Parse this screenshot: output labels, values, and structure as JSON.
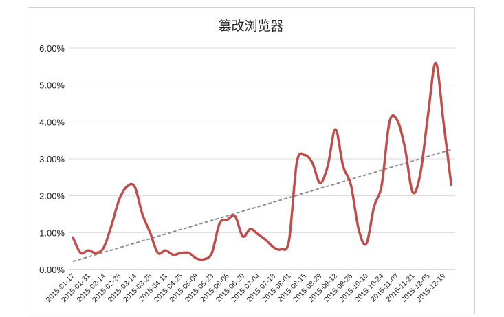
{
  "chart_data": {
    "type": "line",
    "title": "篡改浏览器",
    "categories": [
      "2015-01-17",
      null,
      "2015-01-31",
      null,
      "2015-02-14",
      null,
      "2015-02-28",
      null,
      "2015-03-14",
      null,
      "2015-03-28",
      null,
      "2015-04-11",
      null,
      "2015-04-25",
      null,
      "2015-05-09",
      null,
      "2015-05-23",
      null,
      "2015-06-06",
      null,
      "2015-06-20",
      null,
      "2015-07-04",
      null,
      "2015-07-18",
      null,
      "2015-08-01",
      null,
      "2015-08-15",
      null,
      "2015-08-29",
      null,
      "2015-09-12",
      null,
      "2015-09-26",
      null,
      "2015-10-10",
      null,
      "2015-10-24",
      null,
      "2015-11-07",
      null,
      "2015-11-21",
      null,
      "2015-12-05",
      null,
      "2015-12-19",
      null
    ],
    "values": [
      0.87,
      0.45,
      0.52,
      0.45,
      0.6,
      1.2,
      1.9,
      2.25,
      2.25,
      1.5,
      1.0,
      0.45,
      0.52,
      0.4,
      0.45,
      0.45,
      0.3,
      0.28,
      0.45,
      1.25,
      1.35,
      1.45,
      0.9,
      1.1,
      0.95,
      0.8,
      0.6,
      0.55,
      0.8,
      2.9,
      3.1,
      2.9,
      2.35,
      2.8,
      3.8,
      2.8,
      2.3,
      1.1,
      0.7,
      1.7,
      2.3,
      4.0,
      4.05,
      3.3,
      2.1,
      2.6,
      4.2,
      5.6,
      4.0,
      2.3
    ],
    "color": "#bf4d4a",
    "trendline": {
      "start": 0.22,
      "end": 3.25,
      "color": "#8c8c8c"
    },
    "ylim": [
      0,
      6
    ],
    "yticks": [
      {
        "value": 0,
        "label": "0.00%"
      },
      {
        "value": 1,
        "label": "1.00%"
      },
      {
        "value": 2,
        "label": "2.00%"
      },
      {
        "value": 3,
        "label": "3.00%"
      },
      {
        "value": 4,
        "label": "4.00%"
      },
      {
        "value": 5,
        "label": "5.00%"
      },
      {
        "value": 6,
        "label": "6.00%"
      }
    ],
    "grid": true
  }
}
